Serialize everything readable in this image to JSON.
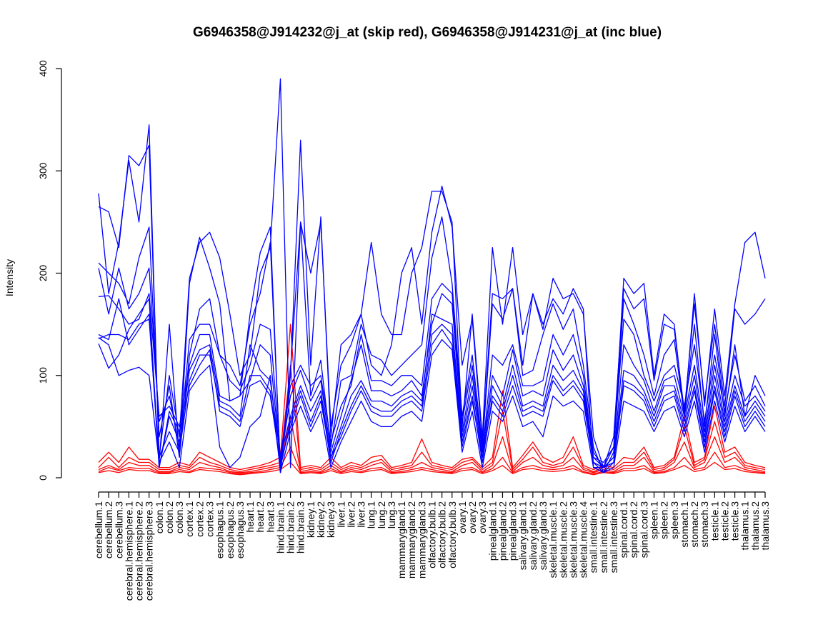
{
  "chart_data": {
    "type": "line",
    "title": "G6946358@J914232@j_at (skip red), G6946358@J914231@j_at (inc blue)",
    "xlabel": "",
    "ylabel": "Intensity",
    "ylim": [
      0,
      400
    ],
    "yticks": [
      0,
      100,
      200,
      300,
      400
    ],
    "grid": false,
    "colors": {
      "skip": "#ff0000",
      "inc": "#0000ff"
    },
    "categories": [
      "cerebellum.1",
      "cerebellum.2",
      "cerebellum.3",
      "cerebral.hemisphere.1",
      "cerebral.hemisphere.2",
      "cerebral.hemisphere.3",
      "colon.1",
      "colon.2",
      "colon.3",
      "cortex.1",
      "cortex.2",
      "cortex.3",
      "esophagus.1",
      "esophagus.2",
      "esophagus.3",
      "heart.1",
      "heart.2",
      "heart.3",
      "hind.brain.1",
      "hind.brain.2",
      "hind.brain.3",
      "kidney.1",
      "kidney.2",
      "kidney.3",
      "liver.1",
      "liver.2",
      "liver.3",
      "lung.1",
      "lung.2",
      "lung.3",
      "mammarygland.1",
      "mammarygland.2",
      "mammarygland.3",
      "olfactory.bulb.1",
      "olfactory.bulb.2",
      "olfactory.bulb.3",
      "ovary.1",
      "ovary.2",
      "ovary.3",
      "pinealgland.1",
      "pinealgland.2",
      "pinealgland.3",
      "salivary.gland.1",
      "salivary.gland.2",
      "salivary.gland.3",
      "skeletal.muscle.1",
      "skeletal.muscle.2",
      "skeletal.muscle.3",
      "skeletal.muscle.4",
      "small.intestine.1",
      "small.intestine.2",
      "small.intestine.3",
      "spinal.cord.1",
      "spinal.cord.2",
      "spinal.cord.3",
      "spleen.1",
      "spleen.2",
      "spleen.3",
      "stomach.1",
      "stomach.2",
      "stomach.3",
      "testicle.1",
      "testicle.2",
      "testicle.3",
      "thalamus.1",
      "thalamus.2",
      "thalamus.3"
    ],
    "inc_series": [
      [
        278,
        180,
        230,
        310,
        250,
        345,
        15,
        150,
        20,
        190,
        235,
        205,
        170,
        75,
        80,
        160,
        220,
        245,
        5,
        100,
        330,
        110,
        255,
        40,
        130,
        140,
        160,
        230,
        160,
        140,
        140,
        200,
        225,
        280,
        280,
        250,
        50,
        160,
        40,
        225,
        150,
        225,
        140,
        180,
        150,
        175,
        160,
        185,
        165,
        10,
        10,
        30,
        195,
        180,
        190,
        100,
        160,
        150,
        60,
        180,
        70,
        165,
        80,
        170,
        230,
        240,
        195
      ],
      [
        265,
        260,
        225,
        315,
        305,
        325,
        20,
        100,
        40,
        195,
        230,
        240,
        215,
        160,
        100,
        120,
        200,
        225,
        390,
        10,
        250,
        200,
        250,
        50,
        110,
        130,
        160,
        110,
        100,
        130,
        200,
        225,
        150,
        240,
        285,
        245,
        110,
        155,
        35,
        180,
        175,
        185,
        110,
        180,
        145,
        195,
        175,
        180,
        160,
        40,
        10,
        40,
        185,
        165,
        175,
        95,
        150,
        145,
        65,
        170,
        75,
        150,
        70,
        165,
        150,
        160,
        175
      ],
      [
        210,
        200,
        190,
        170,
        215,
        245,
        40,
        90,
        20,
        120,
        165,
        175,
        120,
        110,
        90,
        150,
        180,
        230,
        10,
        105,
        250,
        80,
        115,
        30,
        95,
        100,
        150,
        120,
        115,
        100,
        110,
        120,
        130,
        215,
        255,
        190,
        60,
        120,
        30,
        170,
        155,
        185,
        100,
        105,
        140,
        170,
        145,
        165,
        110,
        30,
        5,
        25,
        175,
        150,
        120,
        80,
        120,
        135,
        60,
        150,
        50,
        140,
        60,
        130,
        60,
        100,
        80
      ],
      [
        205,
        160,
        205,
        165,
        180,
        205,
        55,
        80,
        30,
        135,
        150,
        150,
        120,
        95,
        85,
        110,
        150,
        145,
        20,
        90,
        110,
        90,
        100,
        35,
        70,
        90,
        140,
        95,
        95,
        90,
        100,
        100,
        90,
        175,
        190,
        180,
        55,
        110,
        25,
        120,
        110,
        130,
        90,
        90,
        95,
        140,
        120,
        140,
        100,
        20,
        15,
        30,
        155,
        140,
        100,
        75,
        100,
        110,
        70,
        130,
        55,
        120,
        65,
        120,
        75,
        90,
        70
      ],
      [
        177,
        178,
        165,
        150,
        155,
        180,
        60,
        70,
        50,
        110,
        140,
        140,
        80,
        75,
        80,
        95,
        130,
        120,
        15,
        80,
        105,
        75,
        95,
        25,
        60,
        95,
        130,
        85,
        85,
        80,
        85,
        95,
        80,
        150,
        180,
        170,
        45,
        100,
        25,
        100,
        80,
        125,
        80,
        85,
        80,
        125,
        105,
        120,
        90,
        25,
        10,
        20,
        130,
        110,
        95,
        65,
        95,
        100,
        60,
        110,
        45,
        110,
        55,
        100,
        70,
        80,
        65
      ],
      [
        140,
        135,
        175,
        130,
        145,
        160,
        10,
        60,
        35,
        105,
        125,
        130,
        75,
        70,
        60,
        130,
        105,
        95,
        20,
        60,
        90,
        65,
        85,
        20,
        50,
        80,
        95,
        75,
        75,
        70,
        80,
        85,
        75,
        160,
        155,
        150,
        40,
        90,
        20,
        90,
        70,
        110,
        70,
        75,
        70,
        110,
        95,
        105,
        85,
        20,
        10,
        20,
        105,
        100,
        85,
        60,
        90,
        90,
        55,
        100,
        40,
        100,
        50,
        90,
        60,
        75,
        60
      ],
      [
        136,
        140,
        140,
        135,
        150,
        155,
        20,
        45,
        25,
        95,
        120,
        120,
        70,
        65,
        55,
        100,
        100,
        85,
        10,
        55,
        85,
        55,
        80,
        15,
        45,
        70,
        90,
        70,
        65,
        65,
        75,
        80,
        70,
        140,
        150,
        140,
        35,
        80,
        15,
        80,
        65,
        100,
        65,
        70,
        65,
        100,
        85,
        95,
        80,
        15,
        5,
        15,
        95,
        90,
        80,
        55,
        80,
        85,
        50,
        90,
        35,
        90,
        45,
        85,
        55,
        70,
        55
      ],
      [
        131,
        107,
        120,
        145,
        160,
        175,
        10,
        65,
        45,
        90,
        110,
        125,
        65,
        60,
        50,
        90,
        95,
        80,
        15,
        50,
        80,
        50,
        75,
        20,
        40,
        65,
        85,
        65,
        60,
        60,
        70,
        75,
        65,
        130,
        145,
        130,
        30,
        75,
        20,
        75,
        60,
        90,
        60,
        65,
        60,
        95,
        80,
        90,
        75,
        15,
        10,
        15,
        90,
        85,
        75,
        50,
        75,
        80,
        45,
        85,
        30,
        85,
        40,
        80,
        50,
        65,
        50
      ],
      [
        137,
        130,
        100,
        105,
        108,
        100,
        15,
        35,
        10,
        85,
        100,
        110,
        30,
        10,
        20,
        50,
        60,
        100,
        5,
        45,
        70,
        45,
        65,
        10,
        35,
        55,
        75,
        55,
        50,
        50,
        60,
        65,
        55,
        120,
        135,
        125,
        25,
        65,
        10,
        65,
        55,
        80,
        50,
        55,
        40,
        80,
        70,
        75,
        65,
        10,
        5,
        10,
        75,
        70,
        65,
        45,
        65,
        70,
        40,
        75,
        25,
        75,
        35,
        70,
        45,
        60,
        45
      ]
    ],
    "skip_series": [
      [
        15,
        25,
        15,
        30,
        18,
        18,
        10,
        10,
        15,
        12,
        25,
        20,
        15,
        10,
        8,
        10,
        12,
        15,
        20,
        150,
        10,
        12,
        10,
        20,
        10,
        15,
        12,
        20,
        22,
        10,
        12,
        15,
        38,
        15,
        12,
        10,
        18,
        20,
        10,
        20,
        85,
        10,
        22,
        35,
        20,
        15,
        20,
        40,
        12,
        8,
        12,
        10,
        20,
        18,
        30,
        10,
        12,
        20,
        60,
        15,
        20,
        70,
        25,
        30,
        15,
        12,
        10
      ],
      [
        10,
        20,
        10,
        20,
        15,
        15,
        8,
        8,
        12,
        10,
        20,
        15,
        12,
        8,
        6,
        8,
        10,
        12,
        15,
        110,
        8,
        10,
        8,
        15,
        8,
        12,
        10,
        15,
        18,
        8,
        10,
        12,
        25,
        12,
        10,
        8,
        15,
        18,
        8,
        15,
        65,
        8,
        18,
        30,
        15,
        12,
        15,
        30,
        10,
        6,
        10,
        8,
        15,
        15,
        25,
        8,
        10,
        18,
        50,
        12,
        18,
        55,
        20,
        25,
        12,
        10,
        8
      ],
      [
        8,
        12,
        8,
        15,
        12,
        12,
        6,
        6,
        10,
        8,
        15,
        12,
        10,
        6,
        5,
        6,
        8,
        10,
        12,
        60,
        6,
        8,
        6,
        12,
        6,
        10,
        8,
        12,
        15,
        6,
        8,
        10,
        15,
        10,
        8,
        6,
        12,
        15,
        6,
        12,
        40,
        6,
        15,
        20,
        12,
        10,
        12,
        20,
        8,
        5,
        8,
        6,
        12,
        12,
        20,
        6,
        8,
        15,
        35,
        10,
        15,
        40,
        15,
        20,
        10,
        8,
        6
      ],
      [
        6,
        10,
        7,
        10,
        9,
        9,
        5,
        5,
        8,
        6,
        10,
        9,
        8,
        5,
        4,
        5,
        6,
        8,
        10,
        30,
        5,
        6,
        5,
        9,
        5,
        8,
        6,
        9,
        10,
        5,
        6,
        8,
        10,
        8,
        6,
        5,
        9,
        10,
        5,
        9,
        20,
        5,
        10,
        12,
        9,
        8,
        9,
        12,
        6,
        4,
        6,
        5,
        9,
        9,
        12,
        5,
        6,
        10,
        20,
        8,
        10,
        25,
        10,
        12,
        8,
        6,
        5
      ],
      [
        5,
        7,
        5,
        8,
        7,
        7,
        4,
        4,
        6,
        5,
        8,
        7,
        6,
        4,
        3,
        4,
        5,
        6,
        8,
        15,
        4,
        5,
        4,
        7,
        4,
        6,
        5,
        7,
        8,
        4,
        5,
        6,
        8,
        6,
        5,
        4,
        7,
        8,
        4,
        7,
        12,
        4,
        8,
        9,
        7,
        6,
        7,
        9,
        5,
        3,
        5,
        4,
        7,
        7,
        9,
        4,
        5,
        8,
        12,
        6,
        8,
        15,
        8,
        9,
        6,
        5,
        4
      ]
    ]
  }
}
